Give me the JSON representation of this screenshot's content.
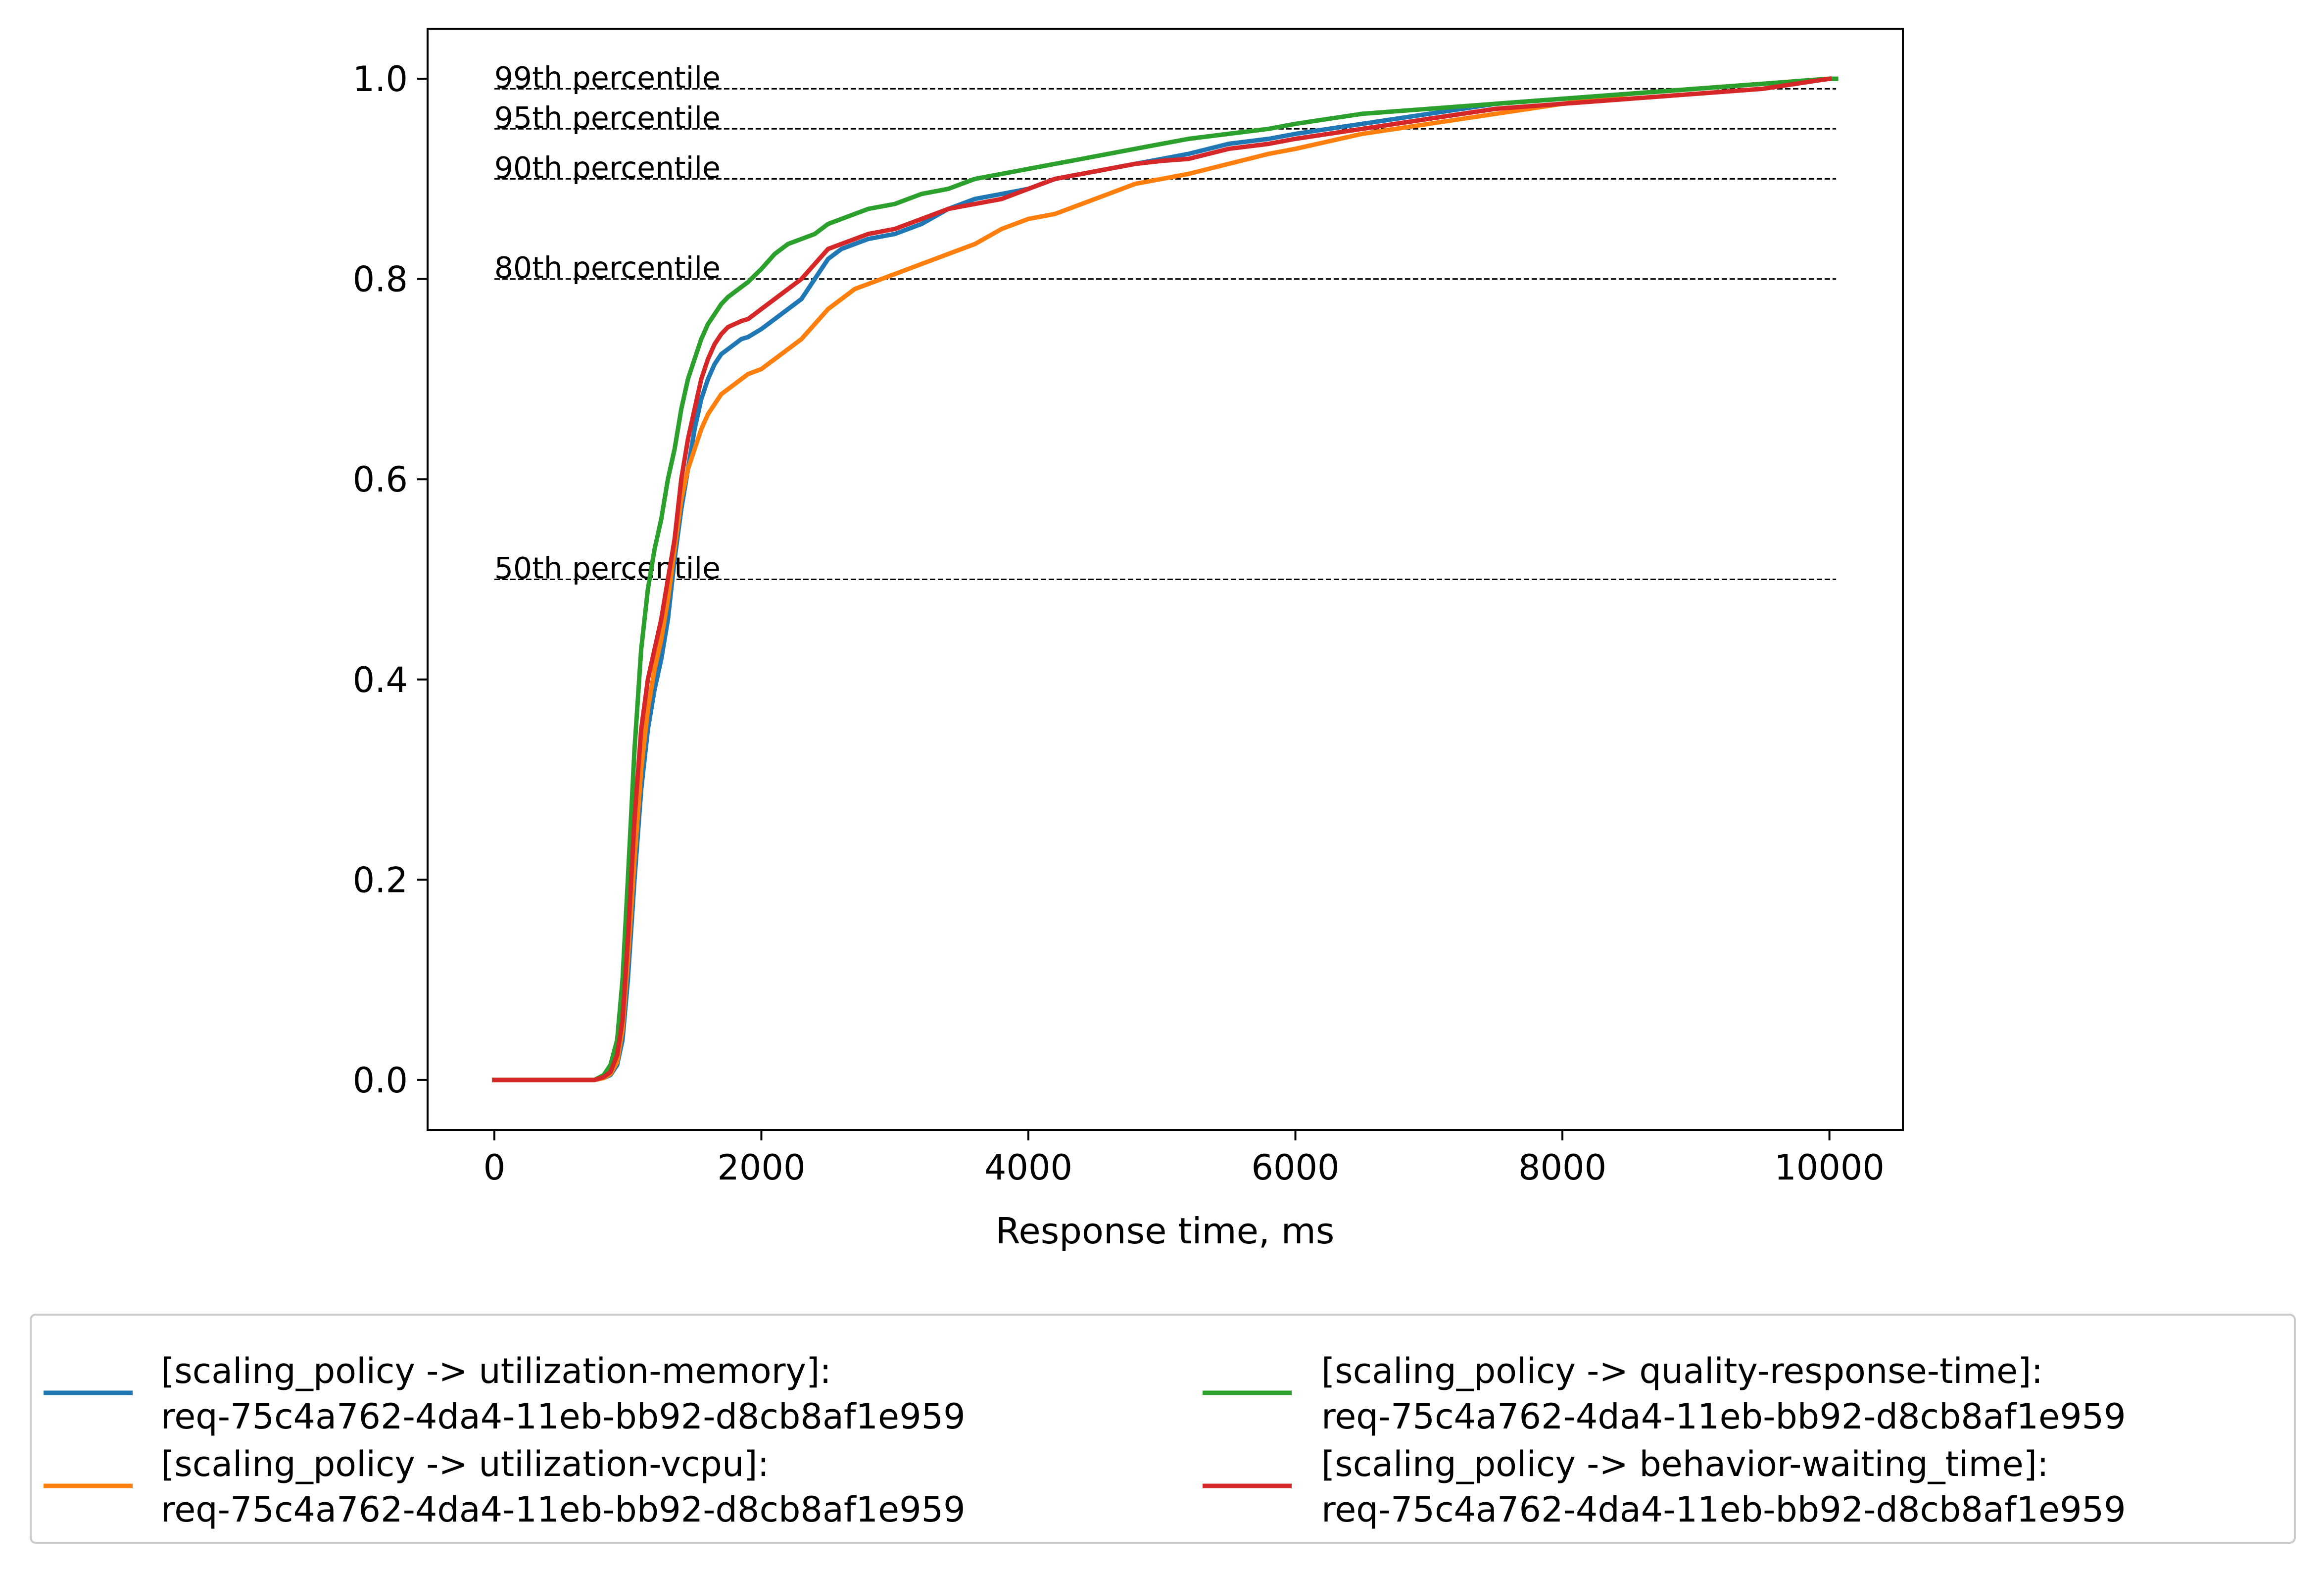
{
  "chart_data": {
    "type": "line",
    "xlabel": "Response time, ms",
    "ylabel": "",
    "xlim": [
      -500,
      10550
    ],
    "ylim": [
      -0.05,
      1.05
    ],
    "xticks": [
      0,
      2000,
      4000,
      6000,
      8000,
      10000
    ],
    "xtick_labels": [
      "0",
      "2000",
      "4000",
      "6000",
      "8000",
      "10000"
    ],
    "yticks": [
      0.0,
      0.2,
      0.4,
      0.6,
      0.8,
      1.0
    ],
    "ytick_labels": [
      "0.0",
      "0.2",
      "0.4",
      "0.6",
      "0.8",
      "1.0"
    ],
    "grid": false,
    "legend_placement": "bottom-center",
    "legend_columns": 2,
    "reference_lines": [
      {
        "label": "50th percentile",
        "y": 0.5,
        "x_start": 0,
        "x_end": 10050
      },
      {
        "label": "80th percentile",
        "y": 0.8,
        "x_start": 0,
        "x_end": 10050
      },
      {
        "label": "90th percentile",
        "y": 0.9,
        "x_start": 0,
        "x_end": 10050
      },
      {
        "label": "95th percentile",
        "y": 0.95,
        "x_start": 0,
        "x_end": 10050
      },
      {
        "label": "99th percentile",
        "y": 0.99,
        "x_start": 0,
        "x_end": 10050
      }
    ],
    "series": [
      {
        "name": "[scaling_policy -> utilization-memory]:",
        "name_line2": "req-75c4a762-4da4-11eb-bb92-d8cb8af1e959",
        "color": "#1f77b4",
        "x": [
          0,
          600,
          750,
          820,
          870,
          920,
          960,
          1000,
          1050,
          1100,
          1150,
          1200,
          1250,
          1300,
          1350,
          1400,
          1450,
          1500,
          1550,
          1600,
          1650,
          1700,
          1750,
          1800,
          1850,
          1900,
          2000,
          2100,
          2200,
          2300,
          2400,
          2500,
          2600,
          2700,
          2800,
          3000,
          3200,
          3400,
          3600,
          3800,
          4000,
          4200,
          4400,
          4600,
          4800,
          5000,
          5200,
          5500,
          5800,
          6000,
          6500,
          7000,
          7500,
          8000,
          8500,
          9000,
          9500,
          10000
        ],
        "y": [
          0,
          0,
          0,
          0.002,
          0.005,
          0.015,
          0.04,
          0.1,
          0.2,
          0.29,
          0.35,
          0.39,
          0.42,
          0.46,
          0.52,
          0.57,
          0.61,
          0.65,
          0.68,
          0.7,
          0.715,
          0.725,
          0.73,
          0.735,
          0.74,
          0.742,
          0.75,
          0.76,
          0.77,
          0.78,
          0.8,
          0.82,
          0.83,
          0.835,
          0.84,
          0.845,
          0.855,
          0.87,
          0.88,
          0.885,
          0.89,
          0.9,
          0.905,
          0.91,
          0.915,
          0.92,
          0.925,
          0.935,
          0.94,
          0.945,
          0.955,
          0.965,
          0.975,
          0.98,
          0.985,
          0.99,
          0.995,
          1.0
        ]
      },
      {
        "name": "[scaling_policy -> utilization-vcpu]:",
        "name_line2": "req-75c4a762-4da4-11eb-bb92-d8cb8af1e959",
        "color": "#ff7f0e",
        "x": [
          0,
          600,
          750,
          820,
          870,
          920,
          960,
          1000,
          1050,
          1100,
          1150,
          1200,
          1250,
          1300,
          1350,
          1400,
          1450,
          1500,
          1550,
          1600,
          1650,
          1700,
          1750,
          1800,
          1850,
          1900,
          2000,
          2100,
          2200,
          2300,
          2400,
          2500,
          2600,
          2700,
          2800,
          3000,
          3200,
          3400,
          3600,
          3800,
          4000,
          4200,
          4400,
          4600,
          4800,
          5000,
          5200,
          5500,
          5800,
          6000,
          6500,
          7000,
          7500,
          8000,
          8500,
          9000,
          9500,
          10000
        ],
        "y": [
          0,
          0,
          0,
          0.002,
          0.006,
          0.018,
          0.05,
          0.12,
          0.22,
          0.31,
          0.37,
          0.41,
          0.44,
          0.48,
          0.53,
          0.58,
          0.61,
          0.63,
          0.65,
          0.665,
          0.675,
          0.685,
          0.69,
          0.695,
          0.7,
          0.705,
          0.71,
          0.72,
          0.73,
          0.74,
          0.755,
          0.77,
          0.78,
          0.79,
          0.795,
          0.805,
          0.815,
          0.825,
          0.835,
          0.85,
          0.86,
          0.865,
          0.875,
          0.885,
          0.895,
          0.9,
          0.905,
          0.915,
          0.925,
          0.93,
          0.945,
          0.955,
          0.965,
          0.975,
          0.985,
          0.99,
          0.995,
          1.0
        ]
      },
      {
        "name": "[scaling_policy -> quality-response-time]:",
        "name_line2": "req-75c4a762-4da4-11eb-bb92-d8cb8af1e959",
        "color": "#2ca02c",
        "x": [
          0,
          600,
          750,
          820,
          870,
          920,
          960,
          1000,
          1050,
          1100,
          1150,
          1200,
          1250,
          1300,
          1350,
          1400,
          1450,
          1500,
          1550,
          1600,
          1650,
          1700,
          1750,
          1800,
          1850,
          1900,
          2000,
          2100,
          2200,
          2300,
          2400,
          2500,
          2600,
          2700,
          2800,
          3000,
          3200,
          3400,
          3600,
          3800,
          4000,
          4200,
          4400,
          4600,
          4800,
          5000,
          5200,
          5500,
          5800,
          6000,
          6500,
          7000,
          7500,
          8000,
          8500,
          9000,
          9500,
          10000,
          10050
        ],
        "y": [
          0,
          0,
          0,
          0.005,
          0.015,
          0.04,
          0.1,
          0.2,
          0.33,
          0.43,
          0.49,
          0.53,
          0.56,
          0.6,
          0.63,
          0.67,
          0.7,
          0.72,
          0.74,
          0.755,
          0.765,
          0.775,
          0.782,
          0.787,
          0.792,
          0.797,
          0.81,
          0.825,
          0.835,
          0.84,
          0.845,
          0.855,
          0.86,
          0.865,
          0.87,
          0.875,
          0.885,
          0.89,
          0.9,
          0.905,
          0.91,
          0.915,
          0.92,
          0.925,
          0.93,
          0.935,
          0.94,
          0.945,
          0.95,
          0.955,
          0.965,
          0.97,
          0.975,
          0.98,
          0.985,
          0.99,
          0.995,
          1.0,
          1.0
        ]
      },
      {
        "name": "[scaling_policy -> behavior-waiting_time]:",
        "name_line2": "req-75c4a762-4da4-11eb-bb92-d8cb8af1e959",
        "color": "#d62728",
        "x": [
          0,
          600,
          750,
          820,
          870,
          920,
          960,
          1000,
          1050,
          1100,
          1150,
          1200,
          1250,
          1300,
          1350,
          1400,
          1450,
          1500,
          1550,
          1600,
          1650,
          1700,
          1750,
          1800,
          1850,
          1900,
          2000,
          2100,
          2200,
          2300,
          2400,
          2500,
          2600,
          2700,
          2800,
          3000,
          3200,
          3400,
          3600,
          3800,
          4000,
          4200,
          4400,
          4600,
          4800,
          5000,
          5200,
          5500,
          5800,
          6000,
          6500,
          7000,
          7500,
          8000,
          8500,
          9000,
          9500,
          10000
        ],
        "y": [
          0,
          0,
          0,
          0.003,
          0.008,
          0.025,
          0.06,
          0.14,
          0.26,
          0.35,
          0.4,
          0.43,
          0.46,
          0.5,
          0.54,
          0.6,
          0.64,
          0.67,
          0.7,
          0.72,
          0.735,
          0.745,
          0.752,
          0.755,
          0.758,
          0.76,
          0.77,
          0.78,
          0.79,
          0.8,
          0.815,
          0.83,
          0.835,
          0.84,
          0.845,
          0.85,
          0.86,
          0.87,
          0.875,
          0.88,
          0.89,
          0.9,
          0.905,
          0.91,
          0.915,
          0.918,
          0.92,
          0.93,
          0.935,
          0.94,
          0.95,
          0.96,
          0.97,
          0.975,
          0.98,
          0.985,
          0.99,
          1.0
        ]
      }
    ]
  }
}
